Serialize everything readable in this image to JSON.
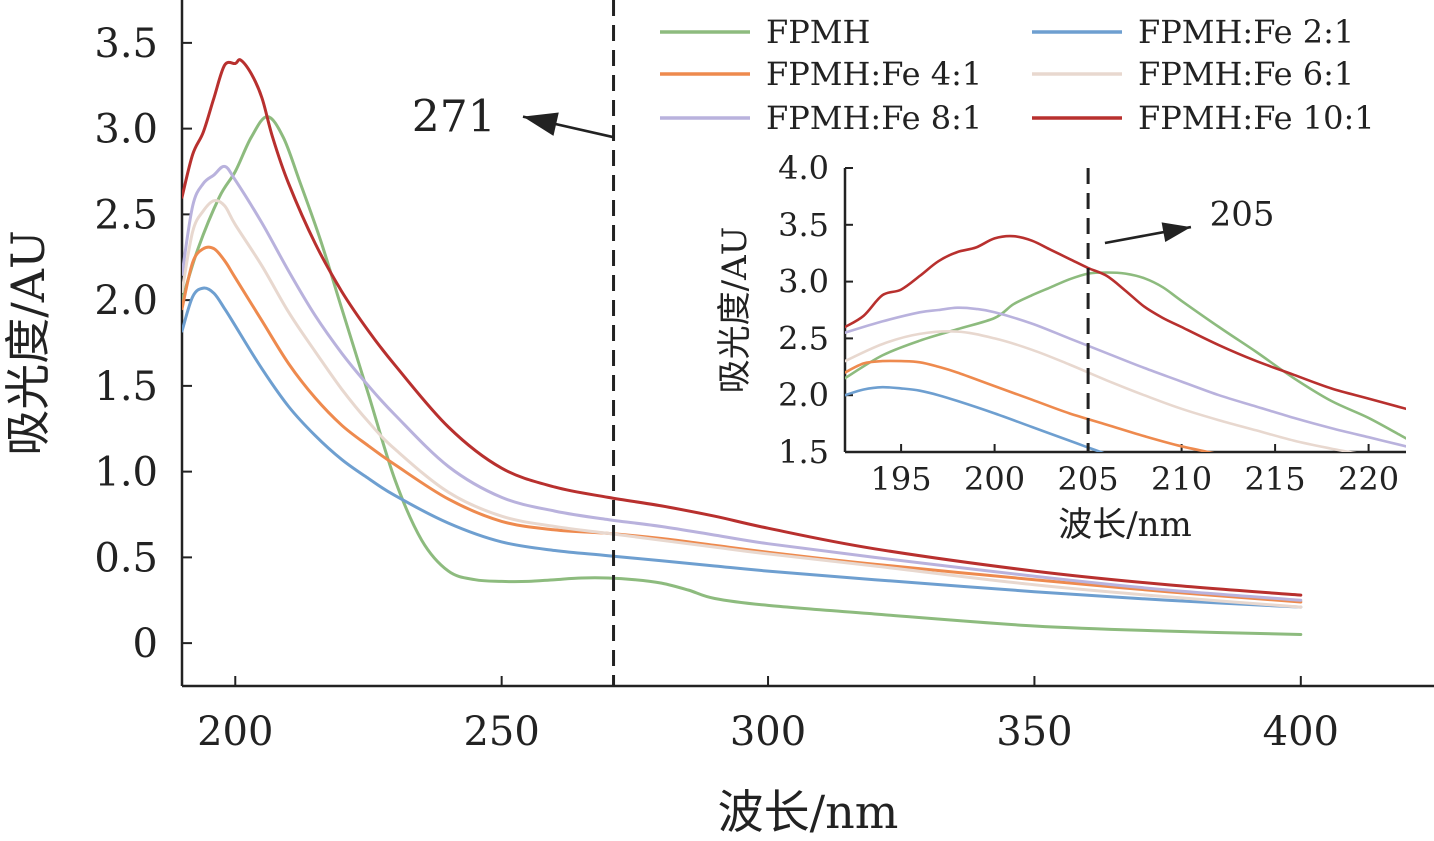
{
  "chart_data": [
    {
      "type": "line",
      "name": "main",
      "xlabel": "波长/nm",
      "ylabel": "吸光度/AU",
      "xlim": [
        190,
        425
      ],
      "ylim": [
        -0.25,
        3.75
      ],
      "xticks": [
        200,
        250,
        300,
        350,
        400
      ],
      "xtick_labels": [
        "200",
        "250",
        "300",
        "350",
        "400"
      ],
      "yticks": [
        0,
        0.5,
        1.0,
        1.5,
        2.0,
        2.5,
        3.0,
        3.5
      ],
      "ytick_labels": [
        "0",
        "0.5",
        "1.0",
        "1.5",
        "2.0",
        "2.5",
        "3.0",
        "3.5"
      ],
      "vline": 271,
      "annotation": {
        "text": "271",
        "arrow_from": [
          271,
          2.95
        ],
        "arrow_to": [
          254,
          3.07
        ],
        "text_at": [
          241,
          3.07
        ]
      },
      "legend": {
        "position": "top-right",
        "entries": [
          "FPMH",
          "FPMH:Fe 2:1",
          "FPMH:Fe 4:1",
          "FPMH:Fe 6:1",
          "FPMH:Fe 8:1",
          "FPMH:Fe 10:1"
        ]
      },
      "series": [
        {
          "name": "FPMH",
          "color": "#8dbb7e",
          "x": [
            190,
            193,
            197,
            200,
            203,
            206,
            209,
            212,
            216,
            220,
            225,
            230,
            235,
            240,
            245,
            250,
            255,
            260,
            265,
            270,
            275,
            280,
            285,
            290,
            300,
            320,
            350,
            375,
            400
          ],
          "y": [
            2.0,
            2.3,
            2.6,
            2.75,
            2.95,
            3.07,
            2.95,
            2.7,
            2.35,
            1.95,
            1.45,
            0.95,
            0.6,
            0.42,
            0.37,
            0.36,
            0.36,
            0.37,
            0.38,
            0.38,
            0.37,
            0.35,
            0.31,
            0.26,
            0.22,
            0.17,
            0.1,
            0.07,
            0.05
          ]
        },
        {
          "name": "FPMH:Fe 2:1",
          "color": "#6e9fd0",
          "x": [
            190,
            192,
            194,
            196,
            198,
            200,
            205,
            210,
            215,
            220,
            225,
            230,
            240,
            250,
            260,
            270,
            280,
            290,
            300,
            320,
            350,
            375,
            400
          ],
          "y": [
            1.82,
            2.02,
            2.07,
            2.04,
            1.95,
            1.85,
            1.6,
            1.38,
            1.21,
            1.07,
            0.96,
            0.86,
            0.7,
            0.59,
            0.54,
            0.51,
            0.48,
            0.45,
            0.42,
            0.37,
            0.3,
            0.25,
            0.21
          ]
        },
        {
          "name": "FPMH:Fe 4:1",
          "color": "#ee8a4e",
          "x": [
            190,
            192,
            194,
            196,
            198,
            200,
            205,
            210,
            215,
            220,
            225,
            230,
            240,
            250,
            260,
            270,
            280,
            290,
            300,
            320,
            350,
            375,
            400
          ],
          "y": [
            1.95,
            2.22,
            2.3,
            2.3,
            2.23,
            2.13,
            1.88,
            1.63,
            1.43,
            1.27,
            1.15,
            1.04,
            0.84,
            0.71,
            0.66,
            0.64,
            0.61,
            0.57,
            0.53,
            0.46,
            0.37,
            0.3,
            0.24
          ]
        },
        {
          "name": "FPMH:Fe 6:1",
          "color": "#e8d8cf",
          "x": [
            190,
            192,
            194,
            196,
            198,
            200,
            205,
            210,
            215,
            220,
            225,
            230,
            240,
            250,
            260,
            270,
            280,
            290,
            300,
            320,
            350,
            375,
            400
          ],
          "y": [
            2.05,
            2.4,
            2.52,
            2.58,
            2.55,
            2.44,
            2.2,
            1.93,
            1.7,
            1.48,
            1.29,
            1.13,
            0.88,
            0.74,
            0.68,
            0.64,
            0.6,
            0.56,
            0.52,
            0.45,
            0.34,
            0.27,
            0.21
          ]
        },
        {
          "name": "FPMH:Fe 8:1",
          "color": "#b9b2dd",
          "x": [
            190,
            192,
            194,
            196,
            198,
            200,
            205,
            210,
            215,
            220,
            225,
            230,
            240,
            250,
            260,
            270,
            280,
            290,
            300,
            320,
            350,
            375,
            400
          ],
          "y": [
            2.15,
            2.55,
            2.68,
            2.73,
            2.78,
            2.7,
            2.45,
            2.17,
            1.91,
            1.69,
            1.5,
            1.33,
            1.03,
            0.85,
            0.77,
            0.72,
            0.68,
            0.63,
            0.58,
            0.5,
            0.39,
            0.31,
            0.25
          ]
        },
        {
          "name": "FPMH:Fe 10:1",
          "color": "#b8302e",
          "x": [
            190,
            192,
            194,
            196,
            198,
            200,
            201,
            203,
            205,
            207,
            210,
            215,
            220,
            225,
            230,
            240,
            250,
            260,
            270,
            280,
            290,
            300,
            320,
            350,
            375,
            400
          ],
          "y": [
            2.6,
            2.85,
            2.98,
            3.18,
            3.37,
            3.38,
            3.4,
            3.32,
            3.18,
            2.95,
            2.68,
            2.33,
            2.05,
            1.82,
            1.62,
            1.26,
            1.02,
            0.91,
            0.85,
            0.8,
            0.74,
            0.67,
            0.55,
            0.42,
            0.34,
            0.28
          ]
        }
      ]
    },
    {
      "type": "line",
      "name": "inset",
      "xlabel": "波长/nm",
      "ylabel": "吸光度/AU",
      "xlim": [
        192,
        222
      ],
      "ylim": [
        1.5,
        4.0
      ],
      "xticks": [
        195,
        200,
        205,
        210,
        215,
        220
      ],
      "xtick_labels": [
        "195",
        "200",
        "205",
        "210",
        "215",
        "220"
      ],
      "yticks": [
        1.5,
        2.0,
        2.5,
        3.0,
        3.5,
        4.0
      ],
      "ytick_labels": [
        "1.5",
        "2.0",
        "2.5",
        "3.0",
        "3.5",
        "4.0"
      ],
      "vline": 205,
      "annotation": {
        "text": "205",
        "arrow_from": [
          205.9,
          3.34
        ],
        "arrow_to": [
          210.5,
          3.48
        ],
        "text_at": [
          211.5,
          3.6
        ]
      },
      "series": [
        {
          "name": "FPMH",
          "color": "#8dbb7e",
          "x": [
            192,
            194,
            196,
            198,
            200,
            201,
            202,
            203,
            204,
            205,
            206,
            207,
            208,
            209,
            210,
            212,
            214,
            216,
            218,
            220,
            222
          ],
          "y": [
            2.15,
            2.35,
            2.48,
            2.58,
            2.68,
            2.8,
            2.88,
            2.95,
            3.02,
            3.07,
            3.08,
            3.07,
            3.03,
            2.95,
            2.83,
            2.6,
            2.38,
            2.15,
            1.95,
            1.8,
            1.62
          ]
        },
        {
          "name": "FPMH:Fe 2:1",
          "color": "#6e9fd0",
          "x": [
            192,
            193,
            194,
            195,
            196,
            197,
            198,
            200,
            202,
            204,
            205,
            206
          ],
          "y": [
            2.0,
            2.05,
            2.07,
            2.06,
            2.04,
            2.0,
            1.95,
            1.84,
            1.72,
            1.6,
            1.54,
            1.48
          ]
        },
        {
          "name": "FPMH:Fe 4:1",
          "color": "#ee8a4e",
          "x": [
            192,
            193,
            194,
            195,
            196,
            197,
            198,
            200,
            202,
            204,
            206,
            208,
            210,
            212
          ],
          "y": [
            2.2,
            2.28,
            2.3,
            2.3,
            2.29,
            2.25,
            2.2,
            2.08,
            1.96,
            1.84,
            1.74,
            1.64,
            1.55,
            1.48
          ]
        },
        {
          "name": "FPMH:Fe 6:1",
          "color": "#e8d8cf",
          "x": [
            192,
            194,
            196,
            198,
            200,
            202,
            204,
            206,
            208,
            210,
            212,
            214,
            216,
            218,
            220
          ],
          "y": [
            2.3,
            2.45,
            2.54,
            2.56,
            2.5,
            2.4,
            2.27,
            2.13,
            2.0,
            1.88,
            1.78,
            1.69,
            1.6,
            1.53,
            1.47
          ]
        },
        {
          "name": "FPMH:Fe 8:1",
          "color": "#b9b2dd",
          "x": [
            192,
            194,
            196,
            197,
            198,
            199,
            200,
            202,
            204,
            206,
            208,
            210,
            212,
            214,
            216,
            218,
            220,
            222
          ],
          "y": [
            2.55,
            2.65,
            2.73,
            2.75,
            2.77,
            2.76,
            2.73,
            2.63,
            2.5,
            2.37,
            2.24,
            2.12,
            2.0,
            1.9,
            1.8,
            1.71,
            1.63,
            1.55
          ]
        },
        {
          "name": "FPMH:Fe 10:1",
          "color": "#b8302e",
          "x": [
            192,
            193,
            194,
            195,
            196,
            197,
            198,
            199,
            200,
            201,
            202,
            203,
            204,
            205,
            206,
            207,
            208,
            209,
            210,
            212,
            214,
            216,
            218,
            220,
            222
          ],
          "y": [
            2.6,
            2.7,
            2.88,
            2.93,
            3.05,
            3.18,
            3.26,
            3.3,
            3.38,
            3.4,
            3.36,
            3.28,
            3.2,
            3.12,
            3.05,
            2.92,
            2.78,
            2.68,
            2.6,
            2.44,
            2.3,
            2.18,
            2.06,
            1.97,
            1.88
          ]
        }
      ]
    }
  ]
}
